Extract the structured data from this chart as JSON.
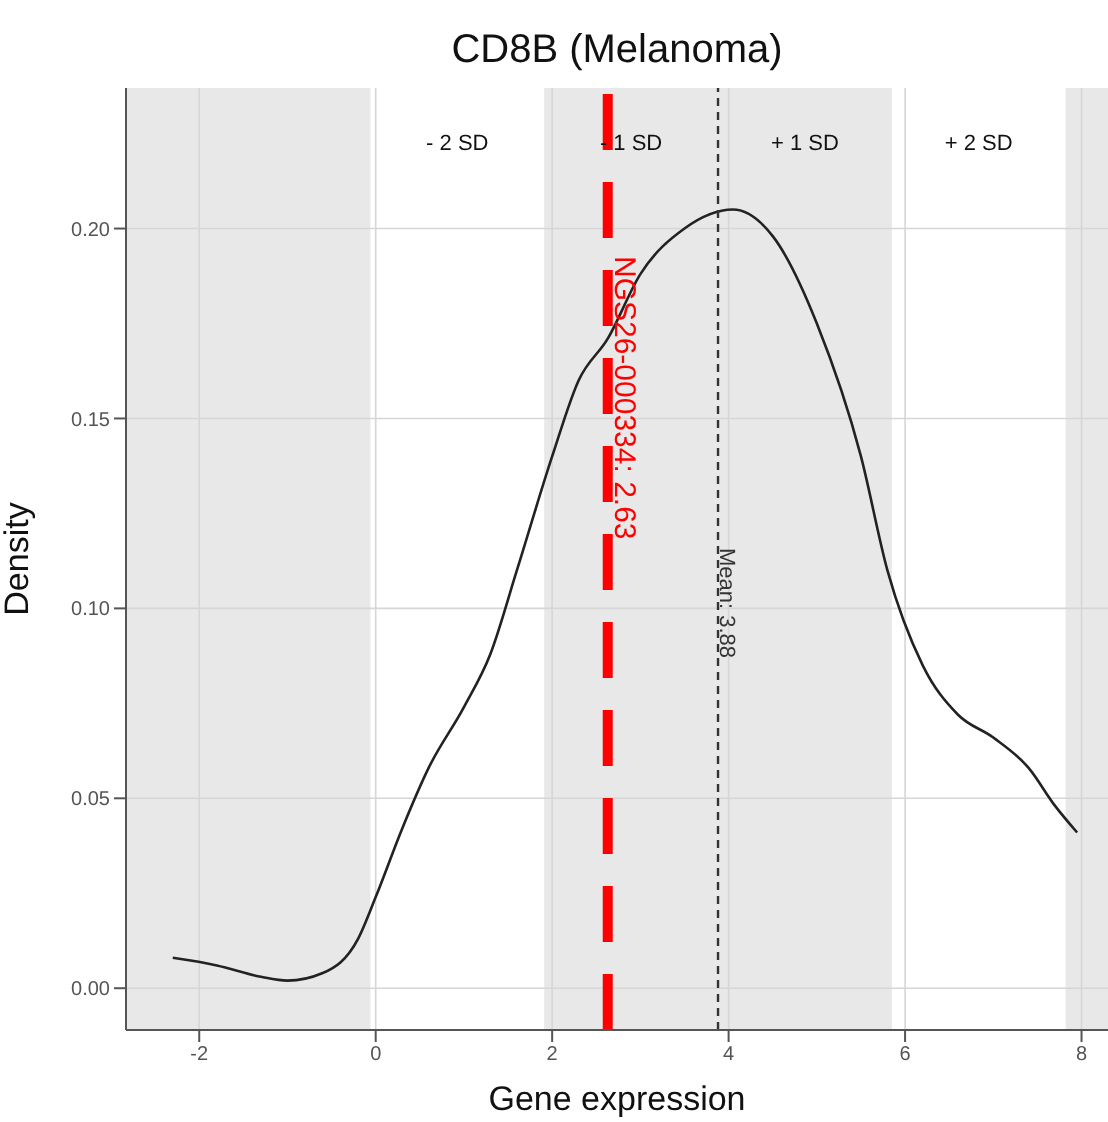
{
  "chart_data": {
    "type": "line",
    "title": "CD8B (Melanoma)",
    "xlabel": "Gene expression",
    "ylabel": "Density",
    "x": [
      -2.3,
      -1.8,
      -1.3,
      -1.0,
      -0.6,
      -0.2,
      0,
      0.3,
      0.6,
      1.0,
      1.3,
      1.6,
      2.0,
      2.3,
      2.63,
      3.0,
      3.5,
      4.05,
      4.5,
      5.0,
      5.5,
      5.8,
      6.2,
      6.6,
      7.0,
      7.4,
      7.7,
      7.95
    ],
    "series": [
      {
        "color": "#222222",
        "values": [
          0.008,
          0.006,
          0.003,
          0.002,
          0.004,
          0.013,
          0.024,
          0.042,
          0.058,
          0.074,
          0.088,
          0.11,
          0.14,
          0.16,
          0.171,
          0.188,
          0.2,
          0.205,
          0.198,
          0.175,
          0.14,
          0.11,
          0.085,
          0.072,
          0.066,
          0.058,
          0.048,
          0.041
        ]
      }
    ],
    "xlim": [
      -2.83,
      8.3
    ],
    "xticks": [
      -2,
      0,
      2,
      4,
      6,
      8
    ],
    "ylim": [
      -0.011,
      0.237
    ],
    "yticks": [
      {
        "value": 0,
        "label": "0.00"
      },
      0.05,
      {
        "value": 0.1,
        "label": "0.10"
      },
      0.15,
      {
        "value": 0.2,
        "label": "0.20"
      }
    ],
    "grid": true,
    "marker": "none",
    "line_style": "solid",
    "legend": false,
    "bands": [
      {
        "axis": "x",
        "from": -2.83,
        "to": -0.06,
        "color": "#e8e8e8"
      },
      {
        "axis": "x",
        "from": 1.91,
        "to": 5.85,
        "color": "#e8e8e8"
      },
      {
        "axis": "x",
        "from": 7.82,
        "to": 8.3,
        "color": "#e8e8e8"
      }
    ],
    "annotations": [
      "- 2 SD",
      "- 1 SD",
      "+ 1 SD",
      "+ 2 SD"
    ],
    "ref_lines": [
      {
        "axis": "x",
        "value": 2.63,
        "label": "NGS26-000334: 2.63",
        "color": "#ff0000",
        "line_style": "dashed"
      },
      {
        "axis": "x",
        "value": 3.88,
        "label": "Mean: 3.88",
        "color": "#333333",
        "line_style": "dashed"
      }
    ]
  }
}
